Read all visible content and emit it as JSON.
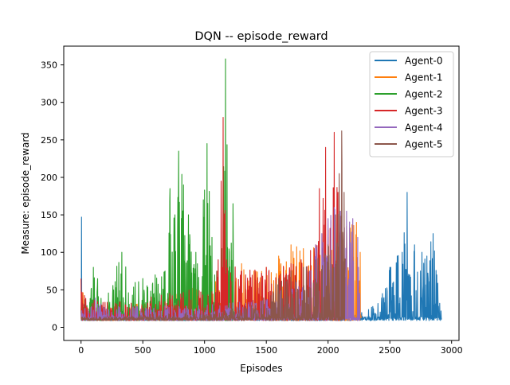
{
  "chart_data": {
    "type": "line",
    "title": "DQN -- episode_reward",
    "xlabel": "Episodes",
    "ylabel": "Measure: episode_reward",
    "xlim": [
      -140,
      3060
    ],
    "ylim": [
      -17.5,
      375
    ],
    "xticks": [
      0,
      500,
      1000,
      1500,
      2000,
      2500,
      3000
    ],
    "yticks": [
      0,
      50,
      100,
      150,
      200,
      250,
      300,
      350
    ],
    "grid": false,
    "legend_position": "upper right",
    "series": [
      {
        "name": "Agent-0",
        "color": "#1f77b4",
        "n_episodes": 2920,
        "keypoints": [
          [
            0,
            20
          ],
          [
            5,
            147
          ],
          [
            12,
            40
          ],
          [
            30,
            25
          ],
          [
            100,
            20
          ],
          [
            300,
            15
          ],
          [
            600,
            12
          ],
          [
            1000,
            12
          ],
          [
            1500,
            12
          ],
          [
            2000,
            11
          ],
          [
            2200,
            12
          ],
          [
            2240,
            30
          ],
          [
            2300,
            25
          ],
          [
            2400,
            40
          ],
          [
            2500,
            80
          ],
          [
            2560,
            95
          ],
          [
            2600,
            100
          ],
          [
            2640,
            180
          ],
          [
            2660,
            70
          ],
          [
            2700,
            110
          ],
          [
            2760,
            100
          ],
          [
            2800,
            95
          ],
          [
            2850,
            125
          ],
          [
            2880,
            70
          ],
          [
            2920,
            25
          ]
        ]
      },
      {
        "name": "Agent-1",
        "color": "#ff7f0e",
        "n_episodes": 2270,
        "keypoints": [
          [
            0,
            30
          ],
          [
            15,
            55
          ],
          [
            50,
            30
          ],
          [
            200,
            25
          ],
          [
            400,
            30
          ],
          [
            600,
            40
          ],
          [
            800,
            45
          ],
          [
            1000,
            60
          ],
          [
            1200,
            70
          ],
          [
            1300,
            85
          ],
          [
            1400,
            75
          ],
          [
            1500,
            80
          ],
          [
            1600,
            95
          ],
          [
            1700,
            110
          ],
          [
            1800,
            105
          ],
          [
            2000,
            120
          ],
          [
            2150,
            135
          ],
          [
            2230,
            140
          ],
          [
            2260,
            100
          ],
          [
            2270,
            10
          ]
        ]
      },
      {
        "name": "Agent-2",
        "color": "#2ca02c",
        "n_episodes": 1240,
        "keypoints": [
          [
            0,
            35
          ],
          [
            40,
            45
          ],
          [
            100,
            80
          ],
          [
            200,
            45
          ],
          [
            330,
            100
          ],
          [
            400,
            60
          ],
          [
            500,
            65
          ],
          [
            600,
            70
          ],
          [
            680,
            75
          ],
          [
            720,
            185
          ],
          [
            760,
            150
          ],
          [
            790,
            235
          ],
          [
            830,
            190
          ],
          [
            870,
            150
          ],
          [
            930,
            100
          ],
          [
            990,
            170
          ],
          [
            1020,
            245
          ],
          [
            1060,
            120
          ],
          [
            1100,
            75
          ],
          [
            1140,
            105
          ],
          [
            1170,
            358
          ],
          [
            1200,
            100
          ],
          [
            1230,
            165
          ],
          [
            1240,
            40
          ]
        ]
      },
      {
        "name": "Agent-3",
        "color": "#d62728",
        "n_episodes": 2120,
        "keypoints": [
          [
            0,
            65
          ],
          [
            30,
            45
          ],
          [
            100,
            40
          ],
          [
            300,
            35
          ],
          [
            500,
            40
          ],
          [
            700,
            45
          ],
          [
            800,
            50
          ],
          [
            1000,
            55
          ],
          [
            1100,
            75
          ],
          [
            1150,
            280
          ],
          [
            1180,
            90
          ],
          [
            1300,
            75
          ],
          [
            1500,
            80
          ],
          [
            1700,
            85
          ],
          [
            1900,
            110
          ],
          [
            1930,
            185
          ],
          [
            1980,
            240
          ],
          [
            2000,
            130
          ],
          [
            2050,
            260
          ],
          [
            2080,
            180
          ],
          [
            2120,
            100
          ]
        ]
      },
      {
        "name": "Agent-4",
        "color": "#9467bd",
        "n_episodes": 2260,
        "keypoints": [
          [
            0,
            25
          ],
          [
            100,
            40
          ],
          [
            300,
            30
          ],
          [
            500,
            28
          ],
          [
            700,
            30
          ],
          [
            900,
            28
          ],
          [
            1100,
            32
          ],
          [
            1300,
            35
          ],
          [
            1500,
            40
          ],
          [
            1700,
            55
          ],
          [
            1850,
            75
          ],
          [
            1900,
            110
          ],
          [
            1950,
            125
          ],
          [
            2000,
            145
          ],
          [
            2050,
            160
          ],
          [
            2100,
            155
          ],
          [
            2150,
            155
          ],
          [
            2200,
            145
          ],
          [
            2240,
            120
          ],
          [
            2260,
            40
          ]
        ]
      },
      {
        "name": "Agent-5",
        "color": "#8c564b",
        "n_episodes": 2140,
        "keypoints": [
          [
            0,
            12
          ],
          [
            200,
            12
          ],
          [
            400,
            15
          ],
          [
            600,
            18
          ],
          [
            800,
            20
          ],
          [
            1000,
            20
          ],
          [
            1200,
            25
          ],
          [
            1400,
            30
          ],
          [
            1500,
            45
          ],
          [
            1600,
            65
          ],
          [
            1700,
            75
          ],
          [
            1800,
            80
          ],
          [
            1900,
            90
          ],
          [
            2000,
            110
          ],
          [
            2060,
            150
          ],
          [
            2090,
            205
          ],
          [
            2110,
            262
          ],
          [
            2130,
            180
          ],
          [
            2140,
            120
          ]
        ]
      }
    ]
  }
}
